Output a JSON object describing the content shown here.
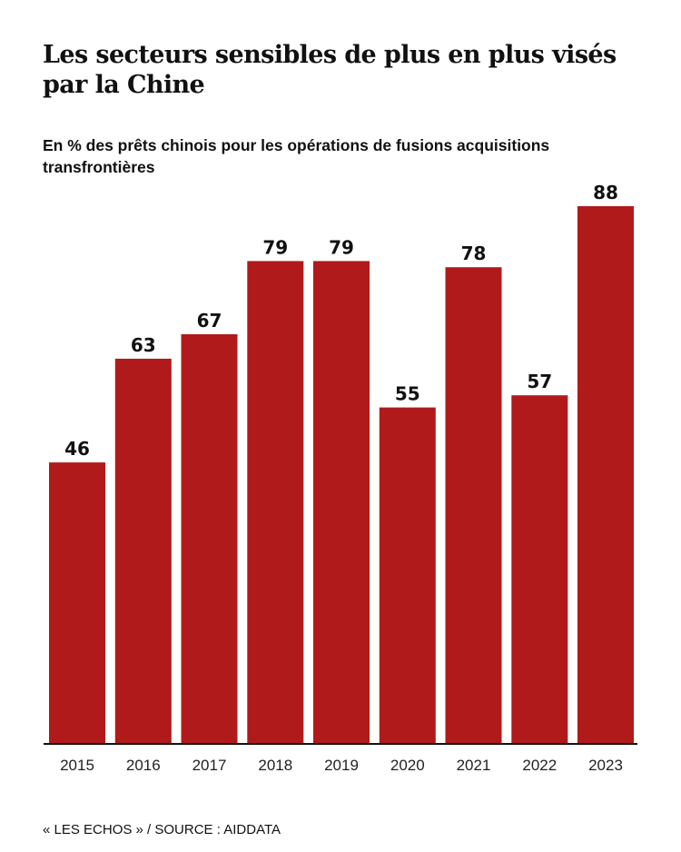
{
  "title": "Les secteurs sensibles de plus en plus visés par la Chine",
  "subtitle": "En % des prêts chinois pour les opérations de fusions acquisitions transfrontières",
  "footer": "« LES ECHOS » / SOURCE : AIDDATA",
  "colors": {
    "bar": "#b01a1a",
    "axis": "#111111"
  },
  "chart_data": {
    "type": "bar",
    "title": "Les secteurs sensibles de plus en plus visés par la Chine",
    "subtitle": "En % des prêts chinois pour les opérations de fusions acquisitions transfrontières",
    "xlabel": "",
    "ylabel": "",
    "categories": [
      "2015",
      "2016",
      "2017",
      "2018",
      "2019",
      "2020",
      "2021",
      "2022",
      "2023"
    ],
    "values": [
      46,
      63,
      67,
      79,
      79,
      55,
      78,
      57,
      88
    ],
    "ylim": [
      0,
      88
    ],
    "grid": false,
    "legend": "none",
    "data_labels": true
  }
}
